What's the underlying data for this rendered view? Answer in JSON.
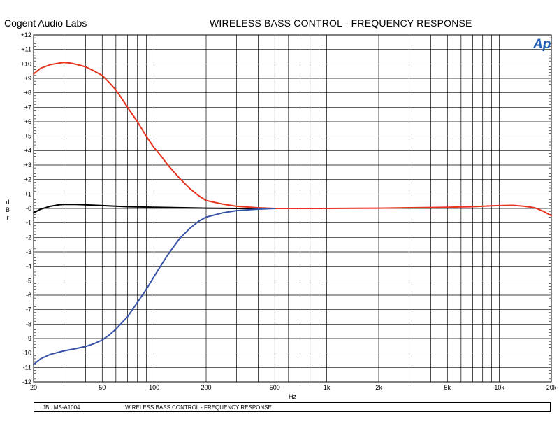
{
  "header": {
    "company": "Cogent Audio Labs",
    "title": "WIRELESS BASS CONTROL  -  FREQUENCY RESPONSE"
  },
  "footer": {
    "model": "JBL MS-A1004",
    "title": "WIRELESS BASS CONTROL  -  FREQUENCY RESPONSE"
  },
  "logo": {
    "text": "Ap",
    "color": "#1e5fb4"
  },
  "chart_data": {
    "type": "line",
    "title": "WIRELESS BASS CONTROL  -  FREQUENCY RESPONSE",
    "xlabel": "Hz",
    "ylabel": [
      "d",
      "B",
      "r"
    ],
    "xscale": "log",
    "xlim": [
      20,
      20000
    ],
    "ylim": [
      -12,
      12
    ],
    "grid": true,
    "x_tick_labels": [
      {
        "value": 20,
        "label": "20"
      },
      {
        "value": 50,
        "label": "50"
      },
      {
        "value": 100,
        "label": "100"
      },
      {
        "value": 200,
        "label": "200"
      },
      {
        "value": 500,
        "label": "500"
      },
      {
        "value": 1000,
        "label": "1k"
      },
      {
        "value": 2000,
        "label": "2k"
      },
      {
        "value": 5000,
        "label": "5k"
      },
      {
        "value": 10000,
        "label": "10k"
      },
      {
        "value": 20000,
        "label": "20k"
      }
    ],
    "y_tick_labels": [
      {
        "value": 12,
        "label": "+12"
      },
      {
        "value": 11,
        "label": "+11"
      },
      {
        "value": 10,
        "label": "+10"
      },
      {
        "value": 9,
        "label": "+9"
      },
      {
        "value": 8,
        "label": "+8"
      },
      {
        "value": 7,
        "label": "+7"
      },
      {
        "value": 6,
        "label": "+6"
      },
      {
        "value": 5,
        "label": "+5"
      },
      {
        "value": 4,
        "label": "+4"
      },
      {
        "value": 3,
        "label": "+3"
      },
      {
        "value": 2,
        "label": "+2"
      },
      {
        "value": 1,
        "label": "+1"
      },
      {
        "value": 0,
        "label": "-0"
      },
      {
        "value": -1,
        "label": "-1"
      },
      {
        "value": -2,
        "label": "-2"
      },
      {
        "value": -3,
        "label": "-3"
      },
      {
        "value": -4,
        "label": "-4"
      },
      {
        "value": -5,
        "label": "-5"
      },
      {
        "value": -6,
        "label": "-6"
      },
      {
        "value": -7,
        "label": "-7"
      },
      {
        "value": -8,
        "label": "-8"
      },
      {
        "value": -9,
        "label": "-9"
      },
      {
        "value": -10,
        "label": "-10"
      },
      {
        "value": -11,
        "label": "-11"
      },
      {
        "value": -12,
        "label": "-12"
      }
    ],
    "series": [
      {
        "color": "#e8321e",
        "points": [
          [
            20,
            9.3
          ],
          [
            22,
            9.7
          ],
          [
            25,
            9.95
          ],
          [
            28,
            10.05
          ],
          [
            30,
            10.1
          ],
          [
            33,
            10.05
          ],
          [
            36,
            9.95
          ],
          [
            40,
            9.8
          ],
          [
            45,
            9.5
          ],
          [
            50,
            9.2
          ],
          [
            55,
            8.7
          ],
          [
            60,
            8.2
          ],
          [
            65,
            7.6
          ],
          [
            70,
            7.0
          ],
          [
            80,
            6.0
          ],
          [
            90,
            5.0
          ],
          [
            100,
            4.2
          ],
          [
            110,
            3.6
          ],
          [
            120,
            3.0
          ],
          [
            140,
            2.1
          ],
          [
            160,
            1.4
          ],
          [
            180,
            0.9
          ],
          [
            200,
            0.55
          ],
          [
            250,
            0.3
          ],
          [
            300,
            0.15
          ],
          [
            400,
            0.05
          ],
          [
            500,
            0.0
          ],
          [
            700,
            0.0
          ],
          [
            1000,
            0.0
          ],
          [
            2000,
            0.02
          ],
          [
            3000,
            0.05
          ],
          [
            5000,
            0.08
          ],
          [
            7000,
            0.12
          ],
          [
            9000,
            0.18
          ],
          [
            10000,
            0.2
          ],
          [
            12000,
            0.22
          ],
          [
            14000,
            0.15
          ],
          [
            16000,
            0.05
          ],
          [
            18000,
            -0.2
          ],
          [
            20000,
            -0.5
          ]
        ]
      },
      {
        "color": "#000000",
        "points": [
          [
            20,
            -0.3
          ],
          [
            22,
            -0.05
          ],
          [
            25,
            0.15
          ],
          [
            28,
            0.25
          ],
          [
            30,
            0.28
          ],
          [
            35,
            0.28
          ],
          [
            40,
            0.25
          ],
          [
            50,
            0.2
          ],
          [
            70,
            0.12
          ],
          [
            100,
            0.08
          ],
          [
            150,
            0.05
          ],
          [
            200,
            0.02
          ],
          [
            300,
            0.0
          ],
          [
            400,
            0.0
          ]
        ]
      },
      {
        "color": "#3752a6",
        "points": [
          [
            20,
            -10.8
          ],
          [
            22,
            -10.4
          ],
          [
            25,
            -10.1
          ],
          [
            30,
            -9.85
          ],
          [
            35,
            -9.7
          ],
          [
            40,
            -9.55
          ],
          [
            45,
            -9.35
          ],
          [
            50,
            -9.1
          ],
          [
            55,
            -8.75
          ],
          [
            60,
            -8.35
          ],
          [
            70,
            -7.5
          ],
          [
            80,
            -6.5
          ],
          [
            90,
            -5.6
          ],
          [
            100,
            -4.7
          ],
          [
            110,
            -3.9
          ],
          [
            120,
            -3.2
          ],
          [
            140,
            -2.1
          ],
          [
            160,
            -1.4
          ],
          [
            180,
            -0.9
          ],
          [
            200,
            -0.6
          ],
          [
            250,
            -0.3
          ],
          [
            300,
            -0.15
          ],
          [
            400,
            -0.05
          ],
          [
            500,
            0.0
          ]
        ]
      }
    ]
  }
}
